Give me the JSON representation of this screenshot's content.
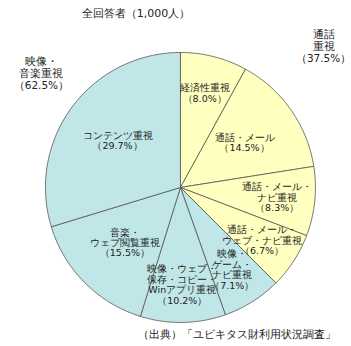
{
  "chart_data": {
    "type": "pie",
    "title": "全回答者（1,000人）",
    "caption": "（出典）「ユビキタス財利用状況調査」",
    "data_labels": true,
    "groups": [
      {
        "name": "通話\n重視",
        "value": 37.5,
        "value_label": "（37.5%）",
        "color": "#ffffc0",
        "categories": [
          "経済性重視",
          "通話・メール",
          "通話・メール・\nナビ重視",
          "通話・メール・\nウェブ・ナビ重視"
        ],
        "values": [
          8.0,
          14.5,
          8.3,
          6.7
        ],
        "value_labels": [
          "（8.0%）",
          "（14.5%）",
          "（8.3%）",
          "（6.7%）"
        ]
      },
      {
        "name": "映像・\n音楽重視",
        "value": 62.5,
        "value_label": "（62.5%）",
        "color": "#c0e6e8",
        "categories": [
          "映像・\nゲーム・\nナビ重視",
          "映像・ウェブ・\n保存・コピー・\nWinアプリ重視",
          "音楽・\nウェブ閲覧重視",
          "コンテンツ重視"
        ],
        "values": [
          7.1,
          10.2,
          15.5,
          29.7
        ],
        "value_labels": [
          "（7.1%）",
          "（10.2%）",
          "（15.5%）",
          "（29.7%）"
        ]
      }
    ]
  }
}
